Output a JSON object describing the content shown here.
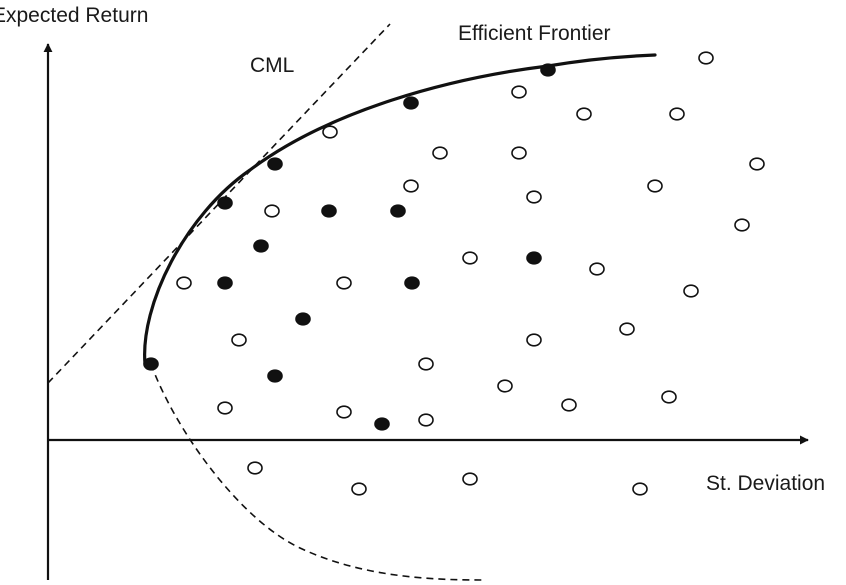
{
  "labels": {
    "y_axis": "Expected Return",
    "x_axis": "St. Deviation",
    "cml": "CML",
    "frontier": "Efficient Frontier"
  },
  "points": {
    "filled": [
      [
        548,
        70
      ],
      [
        411,
        103
      ],
      [
        275,
        164
      ],
      [
        225,
        203
      ],
      [
        329,
        211
      ],
      [
        398,
        211
      ],
      [
        261,
        246
      ],
      [
        534,
        258
      ],
      [
        225,
        283
      ],
      [
        412,
        283
      ],
      [
        303,
        319
      ],
      [
        151,
        364
      ],
      [
        275,
        376
      ],
      [
        382,
        424
      ]
    ],
    "open": [
      [
        706,
        58
      ],
      [
        519,
        92
      ],
      [
        584,
        114
      ],
      [
        677,
        114
      ],
      [
        330,
        132
      ],
      [
        440,
        153
      ],
      [
        519,
        153
      ],
      [
        757,
        164
      ],
      [
        411,
        186
      ],
      [
        655,
        186
      ],
      [
        534,
        197
      ],
      [
        272,
        211
      ],
      [
        742,
        225
      ],
      [
        470,
        258
      ],
      [
        597,
        269
      ],
      [
        184,
        283
      ],
      [
        344,
        283
      ],
      [
        691,
        291
      ],
      [
        627,
        329
      ],
      [
        239,
        340
      ],
      [
        534,
        340
      ],
      [
        426,
        364
      ],
      [
        505,
        386
      ],
      [
        569,
        405
      ],
      [
        669,
        397
      ],
      [
        225,
        408
      ],
      [
        344,
        412
      ],
      [
        426,
        420
      ],
      [
        255,
        468
      ],
      [
        470,
        479
      ],
      [
        359,
        489
      ],
      [
        640,
        489
      ]
    ]
  }
}
